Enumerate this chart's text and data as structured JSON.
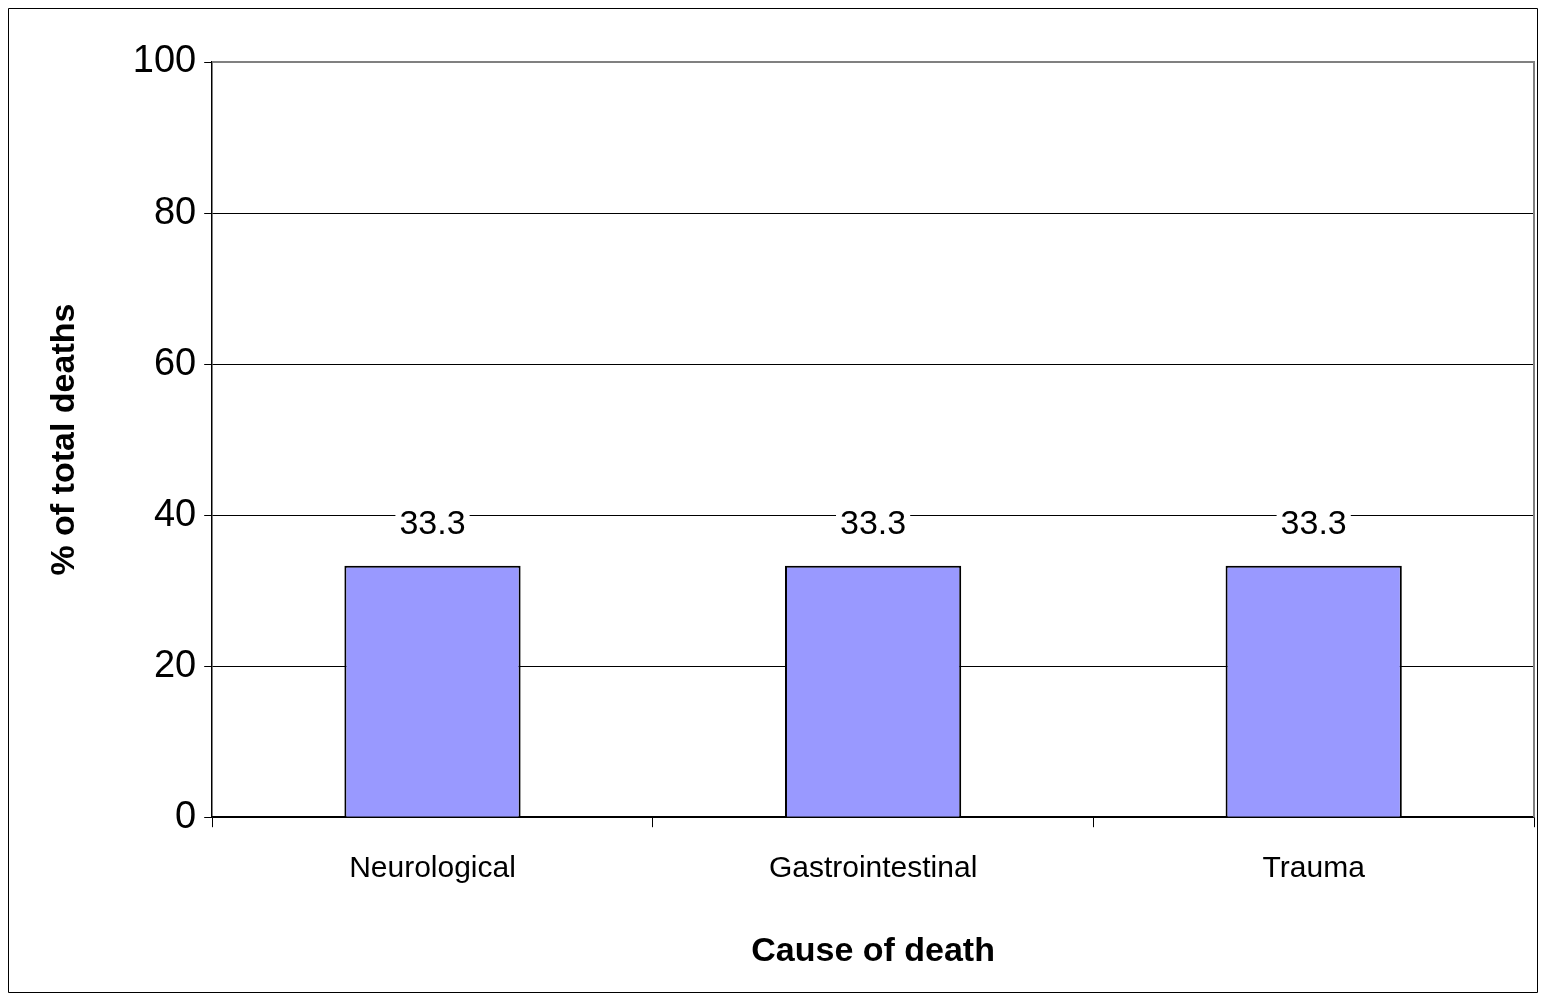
{
  "chart_data": {
    "type": "bar",
    "xlabel": "Cause of death",
    "ylabel": "% of total deaths",
    "categories": [
      "Neurological",
      "Gastrointestinal",
      "Trauma"
    ],
    "values": [
      33.3,
      33.3,
      33.3
    ],
    "color": "#9999ff",
    "ylim": [
      0,
      100
    ],
    "yticks": [
      0,
      20,
      40,
      60,
      80,
      100
    ],
    "grid": "y",
    "data_labels": true,
    "legend": false
  }
}
